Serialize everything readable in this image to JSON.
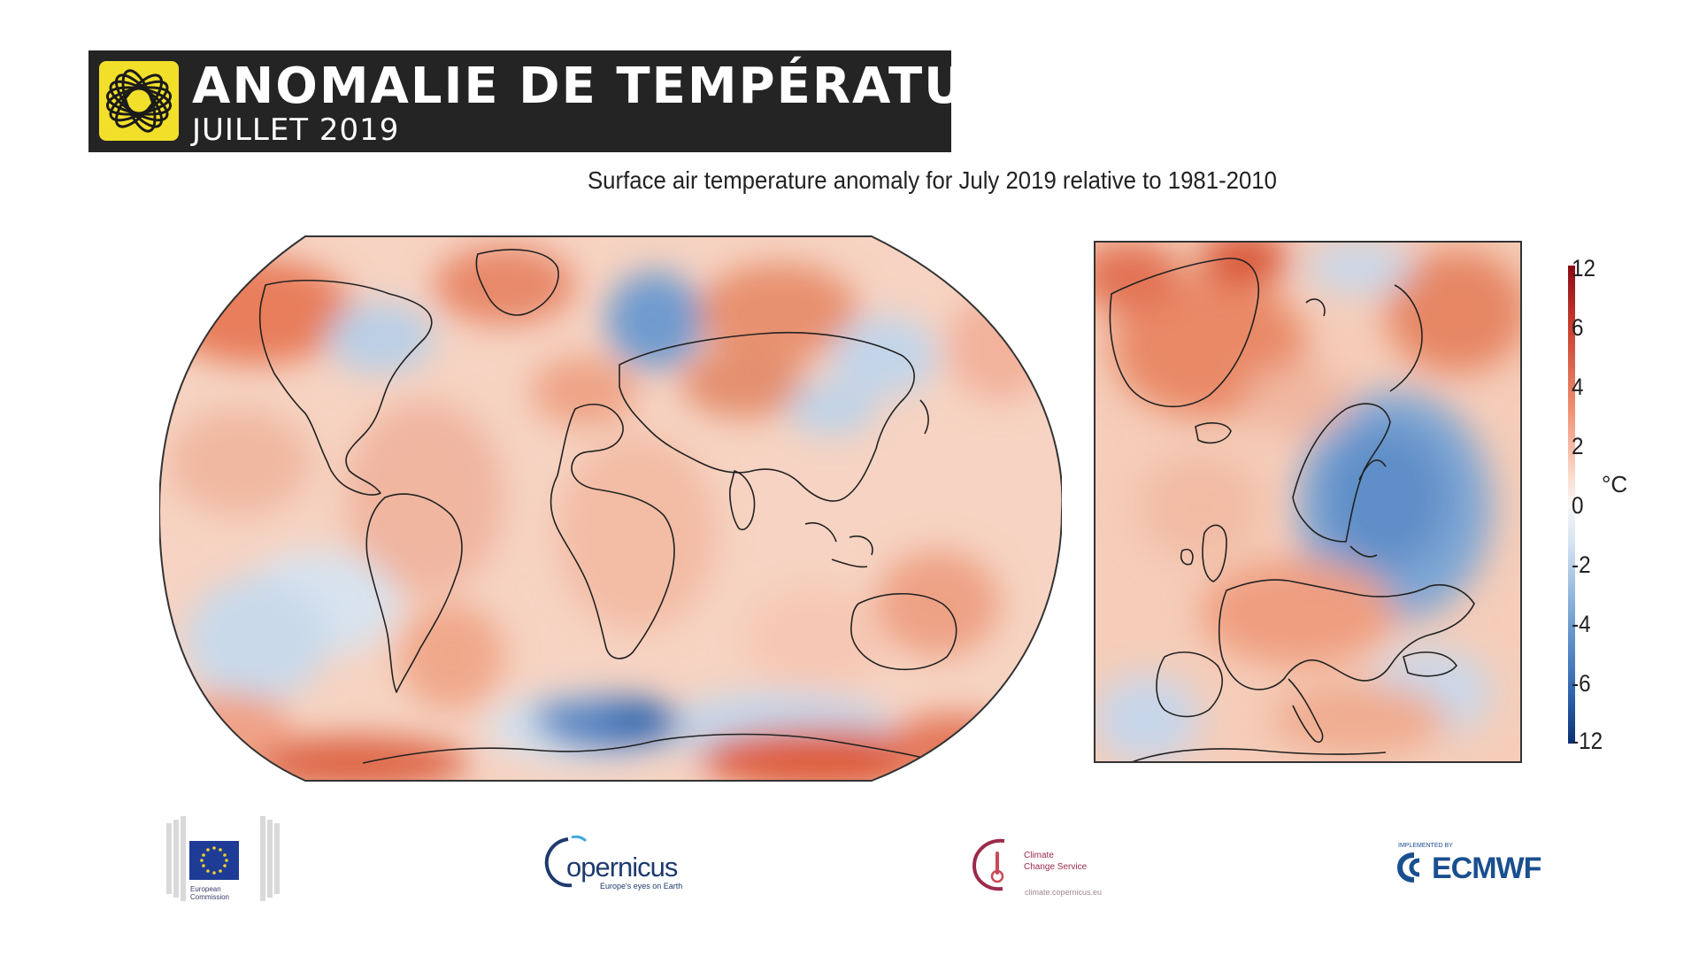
{
  "banner": {
    "title": "ANOMALIE DE TEMPÉRATURE",
    "subtitle": "JUILLET 2019",
    "logo_icon": "yellow-globe-logo-icon"
  },
  "figure": {
    "title": "Surface air temperature anomaly for July 2019 relative to 1981-2010",
    "maps": [
      "world-anomaly-map",
      "europe-anomaly-map"
    ]
  },
  "colorbar": {
    "unit": "°C",
    "ticks": [
      "12",
      "6",
      "4",
      "2",
      "0",
      "-2",
      "-4",
      "-6",
      "-12"
    ],
    "warm_color": "#b2182b",
    "mid_color": "#f7f7f7",
    "cold_color": "#2166ac"
  },
  "logos": {
    "eu": {
      "icon": "eu-flag-icon",
      "caption": "European\nCommission"
    },
    "copernicus": {
      "name": "opernicus",
      "tagline": "Europe's eyes on Earth"
    },
    "c3s": {
      "name": "Climate\nChange Service",
      "url": "climate.copernicus.eu"
    },
    "ecmwf": {
      "tagline": "IMPLEMENTED BY",
      "name": "ECMWF"
    }
  }
}
